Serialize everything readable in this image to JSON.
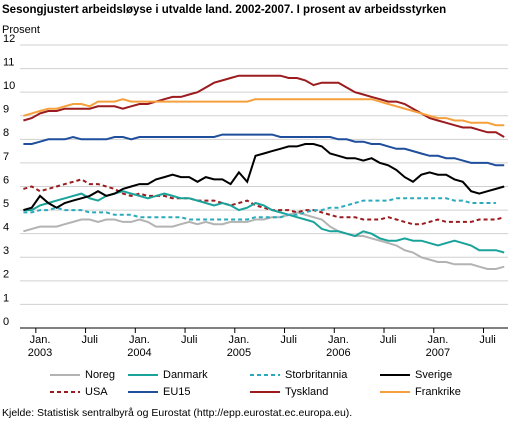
{
  "chart_data": {
    "type": "line",
    "title": "Sesongjustert arbeidsløyse i utvalde land. 2002-2007. I prosent av arbeidsstyrken",
    "y_label": "Prosent",
    "source": "Kjelde: Statistisk sentralbyrå og Eurostat (http://epp.eurostat.ec.europa.eu).",
    "categories": [
      null,
      null,
      "Jan. 2003",
      null,
      null,
      null,
      null,
      null,
      "Juli",
      null,
      null,
      null,
      null,
      null,
      "Jan. 2004",
      null,
      null,
      null,
      null,
      null,
      "Juli",
      null,
      null,
      null,
      null,
      null,
      "Jan. 2005",
      null,
      null,
      null,
      null,
      null,
      "Juli",
      null,
      null,
      null,
      null,
      null,
      "Jan. 2006",
      null,
      null,
      null,
      null,
      null,
      "Juli",
      null,
      null,
      null,
      null,
      null,
      "Jan. 2007",
      null,
      null,
      null,
      null,
      null,
      "Juli",
      null,
      null
    ],
    "ylim": [
      0,
      12
    ],
    "yticks": [
      0,
      1,
      2,
      3,
      4,
      5,
      6,
      7,
      8,
      9,
      10,
      11,
      12
    ],
    "grid": true,
    "series": [
      {
        "name": "Noreg",
        "color": "#b3b3b3",
        "style": "solid",
        "values": [
          4.1,
          4.2,
          4.3,
          4.3,
          4.3,
          4.4,
          4.5,
          4.6,
          4.6,
          4.5,
          4.6,
          4.6,
          4.5,
          4.5,
          4.6,
          4.5,
          4.3,
          4.3,
          4.3,
          4.4,
          4.5,
          4.4,
          4.5,
          4.4,
          4.4,
          4.5,
          4.5,
          4.5,
          4.6,
          4.6,
          4.7,
          4.7,
          4.8,
          4.9,
          4.8,
          4.7,
          4.6,
          4.3,
          4.1,
          4.0,
          3.9,
          3.9,
          3.8,
          3.7,
          3.6,
          3.5,
          3.3,
          3.2,
          3.0,
          2.9,
          2.8,
          2.8,
          2.7,
          2.7,
          2.7,
          2.6,
          2.5,
          2.5,
          2.6
        ]
      },
      {
        "name": "USA",
        "color": "#9b1b1f",
        "style": "dashed",
        "values": [
          5.9,
          6.0,
          5.8,
          5.9,
          6.0,
          6.1,
          6.2,
          6.3,
          6.1,
          6.1,
          6.0,
          5.9,
          5.7,
          5.6,
          5.7,
          5.6,
          5.6,
          5.6,
          5.5,
          5.5,
          5.5,
          5.4,
          5.4,
          5.4,
          5.3,
          5.2,
          5.3,
          5.4,
          5.2,
          5.1,
          5.0,
          5.0,
          5.0,
          4.9,
          5.0,
          5.0,
          4.9,
          4.8,
          4.7,
          4.7,
          4.7,
          4.6,
          4.6,
          4.6,
          4.7,
          4.6,
          4.5,
          4.4,
          4.4,
          4.5,
          4.6,
          4.5,
          4.5,
          4.5,
          4.5,
          4.6,
          4.6,
          4.6,
          4.7
        ]
      },
      {
        "name": "Danmark",
        "color": "#1aa39a",
        "style": "solid",
        "values": [
          5.0,
          5.0,
          5.2,
          5.3,
          5.4,
          5.5,
          5.6,
          5.7,
          5.5,
          5.4,
          5.6,
          5.7,
          5.8,
          5.7,
          5.6,
          5.5,
          5.6,
          5.7,
          5.6,
          5.5,
          5.5,
          5.4,
          5.3,
          5.2,
          5.3,
          5.2,
          5.0,
          5.1,
          5.3,
          5.2,
          5.0,
          4.9,
          4.8,
          4.7,
          4.6,
          4.5,
          4.2,
          4.1,
          4.1,
          4.0,
          3.9,
          4.1,
          4.0,
          3.8,
          3.7,
          3.7,
          3.8,
          3.7,
          3.7,
          3.6,
          3.5,
          3.6,
          3.7,
          3.6,
          3.5,
          3.3,
          3.3,
          3.3,
          3.2
        ]
      },
      {
        "name": "EU15",
        "color": "#1f4e9c",
        "style": "solid",
        "values": [
          7.8,
          7.8,
          7.9,
          8.0,
          8.0,
          8.0,
          8.1,
          8.0,
          8.0,
          8.0,
          8.0,
          8.1,
          8.1,
          8.0,
          8.1,
          8.1,
          8.1,
          8.1,
          8.1,
          8.1,
          8.1,
          8.1,
          8.1,
          8.1,
          8.2,
          8.2,
          8.2,
          8.2,
          8.2,
          8.2,
          8.2,
          8.1,
          8.1,
          8.1,
          8.1,
          8.1,
          8.1,
          8.1,
          8.0,
          8.0,
          7.9,
          7.9,
          7.8,
          7.8,
          7.7,
          7.6,
          7.6,
          7.5,
          7.4,
          7.3,
          7.3,
          7.2,
          7.2,
          7.1,
          7.0,
          7.0,
          7.0,
          6.9,
          6.9
        ]
      },
      {
        "name": "Storbritannia",
        "color": "#2aaabb",
        "style": "dashed",
        "values": [
          4.9,
          4.9,
          5.0,
          5.0,
          5.1,
          5.0,
          5.0,
          5.0,
          4.9,
          4.9,
          4.9,
          4.8,
          4.8,
          4.8,
          4.7,
          4.7,
          4.7,
          4.7,
          4.7,
          4.7,
          4.6,
          4.6,
          4.6,
          4.6,
          4.6,
          4.6,
          4.6,
          4.6,
          4.7,
          4.7,
          4.7,
          4.7,
          4.8,
          4.8,
          4.9,
          5.0,
          5.0,
          5.1,
          5.1,
          5.2,
          5.3,
          5.4,
          5.4,
          5.4,
          5.4,
          5.5,
          5.5,
          5.5,
          5.5,
          5.5,
          5.5,
          5.5,
          5.4,
          5.4,
          5.3,
          5.3,
          5.3,
          5.3,
          null
        ]
      },
      {
        "name": "Tyskland",
        "color": "#9b1b1f",
        "style": "solid",
        "values": [
          8.8,
          8.9,
          9.1,
          9.2,
          9.2,
          9.3,
          9.3,
          9.3,
          9.3,
          9.4,
          9.4,
          9.4,
          9.3,
          9.4,
          9.5,
          9.5,
          9.6,
          9.7,
          9.8,
          9.8,
          9.9,
          10.0,
          10.2,
          10.4,
          10.5,
          10.6,
          10.7,
          10.7,
          10.7,
          10.7,
          10.7,
          10.7,
          10.6,
          10.6,
          10.5,
          10.3,
          10.4,
          10.4,
          10.4,
          10.2,
          10.0,
          9.9,
          9.8,
          9.7,
          9.6,
          9.6,
          9.5,
          9.3,
          9.1,
          8.9,
          8.8,
          8.7,
          8.6,
          8.5,
          8.5,
          8.4,
          8.3,
          8.3,
          8.1
        ]
      },
      {
        "name": "Sverige",
        "color": "#000000",
        "style": "solid",
        "values": [
          5.0,
          5.1,
          5.6,
          5.3,
          5.1,
          5.3,
          5.4,
          5.5,
          5.6,
          5.8,
          5.6,
          5.7,
          5.9,
          6.0,
          6.1,
          6.1,
          6.3,
          6.4,
          6.5,
          6.4,
          6.4,
          6.2,
          6.4,
          6.3,
          6.3,
          6.1,
          6.6,
          6.2,
          7.3,
          7.4,
          7.5,
          7.6,
          7.7,
          7.7,
          7.8,
          7.8,
          7.7,
          7.4,
          7.3,
          7.2,
          7.2,
          7.1,
          7.2,
          7.0,
          6.9,
          6.7,
          6.4,
          6.2,
          6.5,
          6.6,
          6.5,
          6.5,
          6.3,
          6.2,
          5.8,
          5.7,
          5.8,
          5.9,
          6.0
        ]
      },
      {
        "name": "Frankrike",
        "color": "#f5a03c",
        "style": "solid",
        "values": [
          9.0,
          9.1,
          9.2,
          9.3,
          9.3,
          9.4,
          9.5,
          9.5,
          9.4,
          9.6,
          9.6,
          9.6,
          9.7,
          9.6,
          9.6,
          9.6,
          9.6,
          9.6,
          9.6,
          9.6,
          9.6,
          9.6,
          9.6,
          9.6,
          9.6,
          9.6,
          9.6,
          9.6,
          9.7,
          9.7,
          9.7,
          9.7,
          9.7,
          9.7,
          9.7,
          9.7,
          9.7,
          9.7,
          9.7,
          9.7,
          9.7,
          9.7,
          9.7,
          9.6,
          9.5,
          9.4,
          9.3,
          9.2,
          9.1,
          9.0,
          8.9,
          8.9,
          8.8,
          8.8,
          8.7,
          8.7,
          8.7,
          8.6,
          8.6
        ]
      }
    ]
  }
}
